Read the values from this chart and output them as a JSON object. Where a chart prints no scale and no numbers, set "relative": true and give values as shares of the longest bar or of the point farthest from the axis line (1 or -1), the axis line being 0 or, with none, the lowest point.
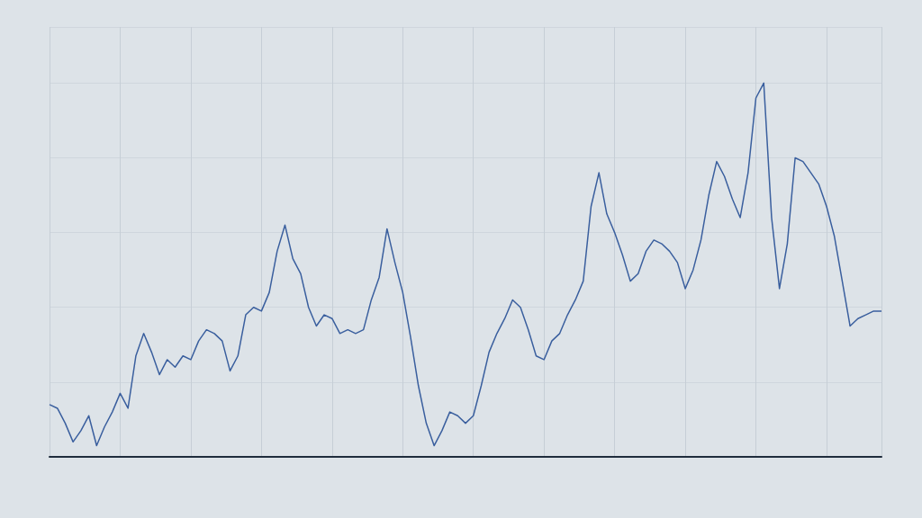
{
  "chart_data": {
    "type": "line",
    "relative": true,
    "grid": true,
    "marker": "none",
    "line_style": "solid",
    "categories": [
      null,
      null,
      null,
      null,
      null,
      null,
      null,
      null,
      null,
      null,
      null,
      null,
      null,
      null,
      null,
      null,
      null,
      null,
      null,
      null,
      null,
      null,
      null,
      null,
      null,
      null,
      null,
      null,
      null,
      null,
      null,
      null,
      null,
      null,
      null,
      null,
      null,
      null,
      null,
      null,
      null,
      null,
      null,
      null,
      null,
      null,
      null,
      null,
      null,
      null,
      null,
      null,
      null,
      null,
      null,
      null,
      null,
      null,
      null,
      null,
      null,
      null,
      null,
      null,
      null,
      null,
      null,
      null,
      null,
      null,
      null,
      null,
      null,
      null,
      null,
      null,
      null,
      null,
      null,
      null,
      null,
      null,
      null,
      null,
      null,
      null,
      null,
      null,
      null,
      null,
      null,
      null,
      null,
      null,
      null,
      null,
      null,
      null,
      null,
      null,
      null,
      null,
      null,
      null,
      null,
      null,
      null
    ],
    "series": [
      {
        "color": "#3a5f9e",
        "values": [
          0.14,
          0.13,
          0.09,
          0.04,
          0.07,
          0.11,
          0.03,
          0.08,
          0.12,
          0.17,
          0.13,
          0.27,
          0.33,
          0.28,
          0.22,
          0.26,
          0.24,
          0.27,
          0.26,
          0.31,
          0.34,
          0.33,
          0.31,
          0.23,
          0.27,
          0.38,
          0.4,
          0.39,
          0.44,
          0.55,
          0.62,
          0.53,
          0.49,
          0.4,
          0.35,
          0.38,
          0.37,
          0.33,
          0.34,
          0.33,
          0.34,
          0.42,
          0.48,
          0.61,
          0.52,
          0.44,
          0.32,
          0.19,
          0.09,
          0.03,
          0.07,
          0.12,
          0.11,
          0.09,
          0.11,
          0.19,
          0.28,
          0.33,
          0.37,
          0.42,
          0.4,
          0.34,
          0.27,
          0.26,
          0.31,
          0.33,
          0.38,
          0.42,
          0.47,
          0.67,
          0.76,
          0.65,
          0.6,
          0.54,
          0.47,
          0.49,
          0.55,
          0.58,
          0.57,
          0.55,
          0.52,
          0.45,
          0.5,
          0.58,
          0.7,
          0.79,
          0.75,
          0.69,
          0.64,
          0.76,
          0.96,
          1.0,
          0.64,
          0.45,
          0.57,
          0.8,
          0.79,
          0.76,
          0.73,
          0.67,
          0.59,
          0.47,
          0.35,
          0.37,
          0.38,
          0.39,
          0.39
        ]
      }
    ]
  }
}
